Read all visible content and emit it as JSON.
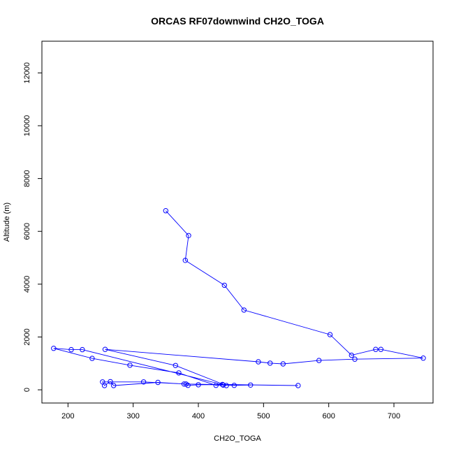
{
  "chart_data": {
    "type": "line",
    "title": "ORCAS RF07downwind CH2O_TOGA",
    "xlabel": "CH2O_TOGA",
    "ylabel": "Altitude (m)",
    "xlim": [
      160,
      760
    ],
    "ylim": [
      -500,
      13200
    ],
    "xticks": [
      200,
      300,
      400,
      500,
      600,
      700
    ],
    "yticks": [
      0,
      2000,
      4000,
      6000,
      8000,
      10000,
      12000
    ],
    "grid": false,
    "markers": "open-circle",
    "colors": {
      "series": "#0000ff",
      "axis": "#000000"
    },
    "series": [
      {
        "x": [
          350,
          385,
          380,
          440,
          470,
          602,
          635,
          672,
          680,
          745,
          640,
          585,
          530,
          510,
          492,
          257,
          365,
          443,
          222,
          205,
          178,
          237,
          295,
          370,
          427,
          438,
          455,
          480,
          381,
          316,
          253,
          256,
          265,
          270,
          338,
          378,
          384,
          400,
          437,
          553
        ],
        "y": [
          6780,
          5840,
          4900,
          3960,
          3020,
          2090,
          1310,
          1530,
          1530,
          1200,
          1160,
          1110,
          980,
          1010,
          1060,
          1530,
          920,
          160,
          1520,
          1520,
          1570,
          1190,
          930,
          640,
          170,
          180,
          170,
          180,
          220,
          300,
          300,
          160,
          310,
          160,
          280,
          220,
          170,
          190,
          200,
          160
        ]
      }
    ]
  }
}
